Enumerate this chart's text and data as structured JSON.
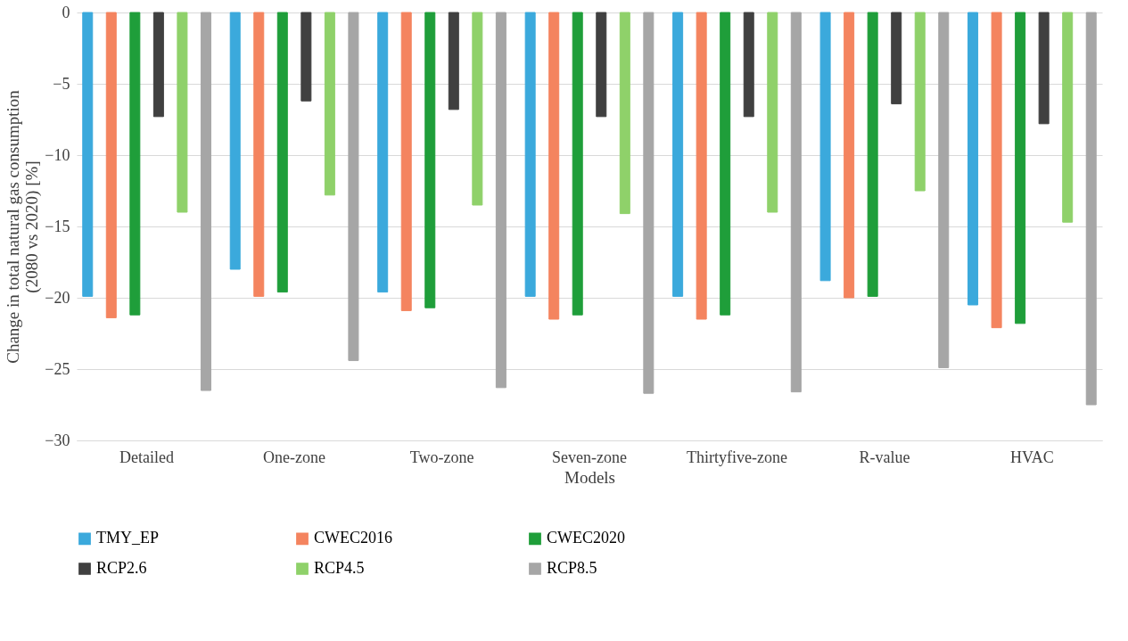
{
  "chart_data": {
    "type": "bar",
    "xlabel": "Models",
    "ylabel": "Change in total natural gas consumption (2080 vs 2020) [%]",
    "categories": [
      "Detailed",
      "One-zone",
      "Two-zone",
      "Seven-zone",
      "Thirtyfive-zone",
      "R-value",
      "HVAC"
    ],
    "series": [
      {
        "name": "TMY_EP",
        "color": "#3ba9dc",
        "values": [
          -19.9,
          -18.0,
          -19.6,
          -19.9,
          -19.9,
          -18.8,
          -20.5
        ]
      },
      {
        "name": "CWEC2016",
        "color": "#f4845f",
        "values": [
          -21.4,
          -19.9,
          -20.9,
          -21.5,
          -21.5,
          -20.0,
          -22.1
        ]
      },
      {
        "name": "CWEC2020",
        "color": "#1f9e3a",
        "values": [
          -21.2,
          -19.6,
          -20.7,
          -21.2,
          -21.2,
          -19.9,
          -21.8
        ]
      },
      {
        "name": "RCP2.6",
        "color": "#404040",
        "values": [
          -7.3,
          -6.2,
          -6.8,
          -7.3,
          -7.3,
          -6.4,
          -7.8
        ]
      },
      {
        "name": "RCP4.5",
        "color": "#8fd16a",
        "values": [
          -14.0,
          -12.8,
          -13.5,
          -14.1,
          -14.0,
          -12.5,
          -14.7
        ]
      },
      {
        "name": "RCP8.5",
        "color": "#a6a6a6",
        "values": [
          -26.5,
          -24.4,
          -26.3,
          -26.7,
          -26.6,
          -24.9,
          -27.5
        ]
      }
    ],
    "ylim": [
      -30,
      0
    ],
    "yticks": [
      -30,
      -25,
      -20,
      -15,
      -10,
      -5,
      0
    ],
    "grid": "y",
    "legend": "bottom"
  }
}
